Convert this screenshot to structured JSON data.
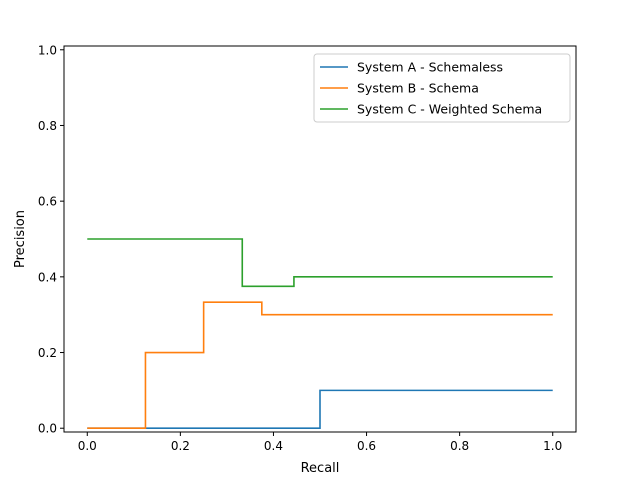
{
  "chart_data": {
    "type": "line",
    "step": true,
    "xlabel": "Recall",
    "ylabel": "Precision",
    "xlim": [
      -0.05,
      1.05
    ],
    "ylim": [
      -0.01,
      1.01
    ],
    "xticks": [
      0.0,
      0.2,
      0.4,
      0.6,
      0.8,
      1.0
    ],
    "xtick_labels": [
      "0.0",
      "0.2",
      "0.4",
      "0.6",
      "0.8",
      "1.0"
    ],
    "yticks": [
      0.0,
      0.2,
      0.4,
      0.6,
      0.8,
      1.0
    ],
    "ytick_labels": [
      "0.0",
      "0.2",
      "0.4",
      "0.6",
      "0.8",
      "1.0"
    ],
    "grid": false,
    "legend_position": "top-right",
    "series": [
      {
        "name": "System A - Schemaless",
        "color": "#1f77b4",
        "points": [
          [
            0.0,
            0.0
          ],
          [
            0.5,
            0.0
          ],
          [
            0.5,
            0.1
          ],
          [
            1.0,
            0.1
          ]
        ]
      },
      {
        "name": "System B - Schema",
        "color": "#ff7f0e",
        "points": [
          [
            0.0,
            0.0
          ],
          [
            0.125,
            0.0
          ],
          [
            0.125,
            0.2
          ],
          [
            0.25,
            0.2
          ],
          [
            0.25,
            0.333
          ],
          [
            0.375,
            0.333
          ],
          [
            0.375,
            0.3
          ],
          [
            1.0,
            0.3
          ]
        ]
      },
      {
        "name": "System C - Weighted Schema",
        "color": "#2ca02c",
        "points": [
          [
            0.0,
            0.5
          ],
          [
            0.333,
            0.5
          ],
          [
            0.333,
            0.375
          ],
          [
            0.444,
            0.375
          ],
          [
            0.444,
            0.4
          ],
          [
            1.0,
            0.4
          ]
        ]
      }
    ]
  }
}
